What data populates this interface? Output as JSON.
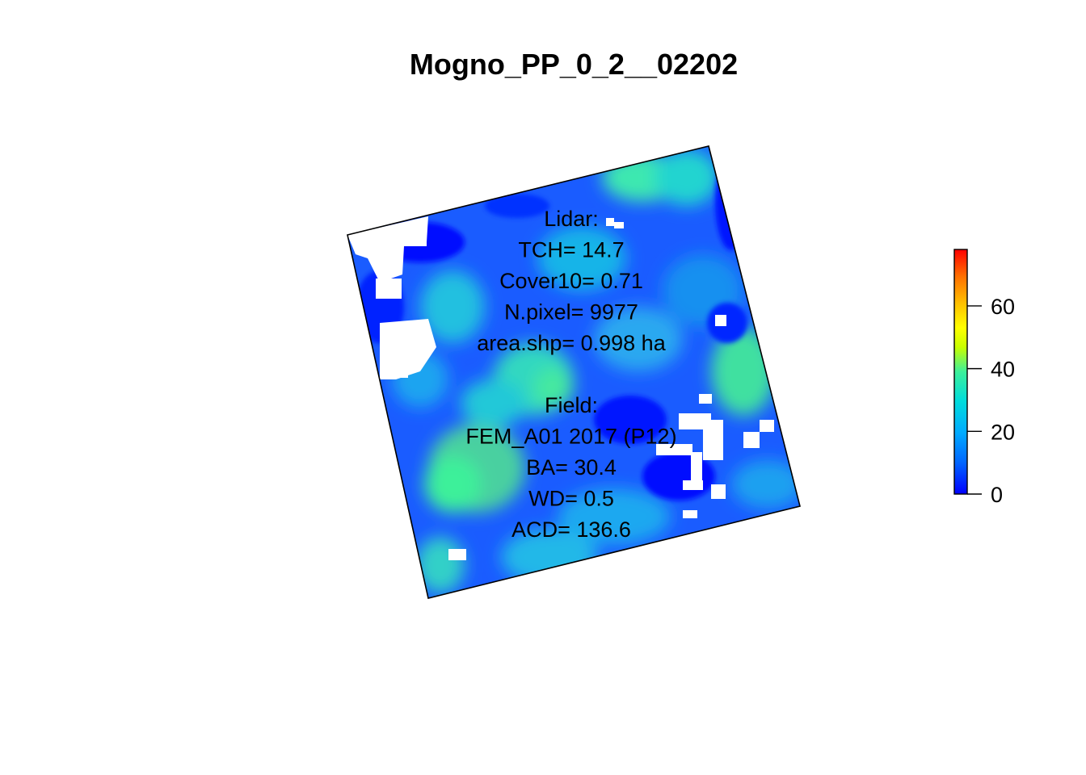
{
  "title": "Mogno_PP_0_2__02202",
  "plot_text": {
    "lines": [
      "Lidar:",
      "TCH= 14.7",
      "Cover10= 0.71",
      "N.pixel= 9977",
      "area.shp= 0.998 ha",
      "",
      "Field:",
      "FEM_A01 2017 (P12)",
      "BA= 30.4",
      "WD= 0.5",
      "ACD= 136.6"
    ]
  },
  "legend": {
    "type": "continuous color scale",
    "min": 0,
    "max": 78,
    "ticks": [
      0,
      20,
      40,
      60
    ],
    "tick_labels": [
      "0",
      "20",
      "40",
      "60"
    ],
    "colors": [
      "#0000ff",
      "#0066ff",
      "#00aaff",
      "#00dcdc",
      "#3cf09a",
      "#c8ff00",
      "#ffff00",
      "#ffc000",
      "#ff7000",
      "#ff0000"
    ]
  },
  "raster": {
    "background_color": "#1a5cff",
    "nodata_color": "#ffffff",
    "border_color": "#000000",
    "tile_rotation_deg": -13
  }
}
